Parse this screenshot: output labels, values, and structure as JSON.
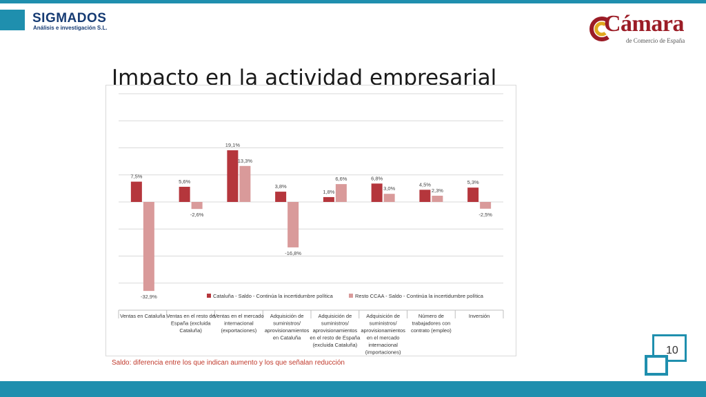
{
  "header": {
    "left_logo": {
      "name": "SIGMADOS",
      "tagline": "Análisis e investigación S.L."
    },
    "right_logo": {
      "name": "Cámara",
      "tagline": "de Comercio de España"
    }
  },
  "title": "Impacto en la actividad empresarial",
  "footnote": "Saldo: diferencia entre los que indican aumento y los que señalan reducción",
  "page_number": "10",
  "colors": {
    "accent": "#1f8fae",
    "series1": "#b5363c",
    "series2": "#d99a9a",
    "footnote": "#c0392b"
  },
  "chart_data": {
    "type": "bar",
    "title": "",
    "xlabel": "",
    "ylabel": "",
    "ylim": [
      -40,
      40
    ],
    "grid": true,
    "legend_position": "bottom",
    "categories": [
      [
        "Ventas en Cataluña"
      ],
      [
        "Ventas en el resto de",
        "España (excluida",
        "Cataluña)"
      ],
      [
        "Ventas en el mercado",
        "internacional",
        "(exportaciones)"
      ],
      [
        "Adquisición de",
        "suministros/",
        "aprovisionamientos",
        "en Cataluña"
      ],
      [
        "Adquisición de",
        "suministros/",
        "aprovisionamientos",
        "en el resto de España",
        "(excluida Cataluña)"
      ],
      [
        "Adquisición de",
        "suministros/",
        "aprovisionamientos",
        "en el mercado",
        "internacional",
        "(importaciones)"
      ],
      [
        "Número de",
        "trabajadores con",
        "contrato (empleo)"
      ],
      [
        "Inversión"
      ]
    ],
    "series": [
      {
        "name": "Cataluña - Saldo - Continúa la incertidumbre política",
        "values": [
          7.5,
          5.6,
          19.1,
          3.8,
          1.8,
          6.8,
          4.5,
          5.3
        ],
        "labels": [
          "7,5%",
          "5,6%",
          "19,1%",
          "3,8%",
          "1,8%",
          "6,8%",
          "4,5%",
          "5,3%"
        ]
      },
      {
        "name": "Resto CCAA - Saldo - Continúa la incertidumbre política",
        "values": [
          -32.9,
          -2.6,
          13.3,
          -16.8,
          6.6,
          3.0,
          2.3,
          -2.5
        ],
        "labels": [
          "-32,9%",
          "-2,6%",
          "13,3%",
          "-16,8%",
          "6,6%",
          "3,0%",
          "2,3%",
          "-2,5%"
        ]
      }
    ]
  }
}
